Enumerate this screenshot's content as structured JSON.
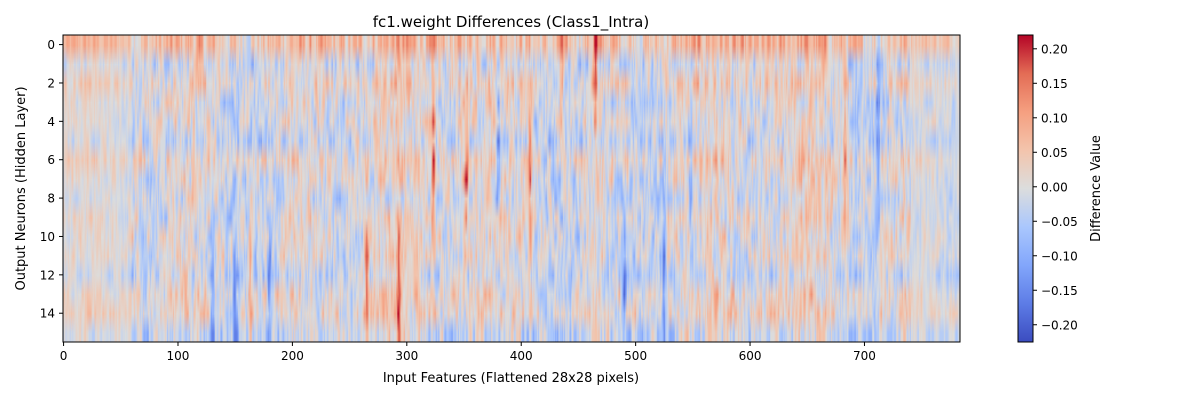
{
  "chart_data": {
    "type": "heatmap",
    "title": "fc1.weight Differences (Class1_Intra)",
    "xlabel": "Input Features (Flattened 28x28 pixels)",
    "ylabel": "Output Neurons (Hidden Layer)",
    "rows": 16,
    "cols": 784,
    "x_ticks": [
      0,
      100,
      200,
      300,
      400,
      500,
      600,
      700
    ],
    "y_ticks": [
      0,
      2,
      4,
      6,
      8,
      10,
      12,
      14
    ],
    "xlim": [
      -0.5,
      783.5
    ],
    "ylim": [
      15.5,
      -0.5
    ],
    "colormap": "coolwarm",
    "colorbar": {
      "label": "Difference Value",
      "min": -0.225,
      "max": 0.22,
      "ticks": [
        -0.2,
        -0.15,
        -0.1,
        -0.05,
        0.0,
        0.05,
        0.1,
        0.15,
        0.2
      ],
      "tick_labels": [
        "−0.20",
        "−0.15",
        "−0.10",
        "−0.05",
        "0.00",
        "0.05",
        "0.10",
        "0.15",
        "0.20"
      ]
    },
    "feature_notes": {
      "row_bias": [
        0.06,
        -0.01,
        0.02,
        -0.01,
        0.0,
        -0.02,
        0.02,
        0.0,
        -0.01,
        0.0,
        0.0,
        0.0,
        -0.02,
        0.01,
        0.02,
        -0.02
      ],
      "strong_columns": [
        {
          "col": 130,
          "row": 13,
          "value": -0.15
        },
        {
          "col": 150,
          "row": 13,
          "value": -0.14
        },
        {
          "col": 163,
          "row": 13,
          "value": 0.16
        },
        {
          "col": 180,
          "row": 13,
          "value": -0.15
        },
        {
          "col": 265,
          "row": 13,
          "value": 0.16
        },
        {
          "col": 293,
          "row": 13,
          "value": 0.18
        },
        {
          "col": 323,
          "row": 6,
          "value": 0.17
        },
        {
          "col": 352,
          "row": 6,
          "value": 0.2
        },
        {
          "col": 380,
          "row": 6,
          "value": -0.15
        },
        {
          "col": 408,
          "row": 6,
          "value": 0.16
        },
        {
          "col": 435,
          "row": 1,
          "value": 0.18
        },
        {
          "col": 465,
          "row": 1,
          "value": 0.2
        },
        {
          "col": 490,
          "row": 13,
          "value": -0.16
        },
        {
          "col": 525,
          "row": 13,
          "value": -0.15
        },
        {
          "col": 548,
          "row": 6,
          "value": -0.14
        },
        {
          "col": 683,
          "row": 6,
          "value": 0.14
        },
        {
          "col": 712,
          "row": 3,
          "value": -0.14
        }
      ]
    }
  }
}
